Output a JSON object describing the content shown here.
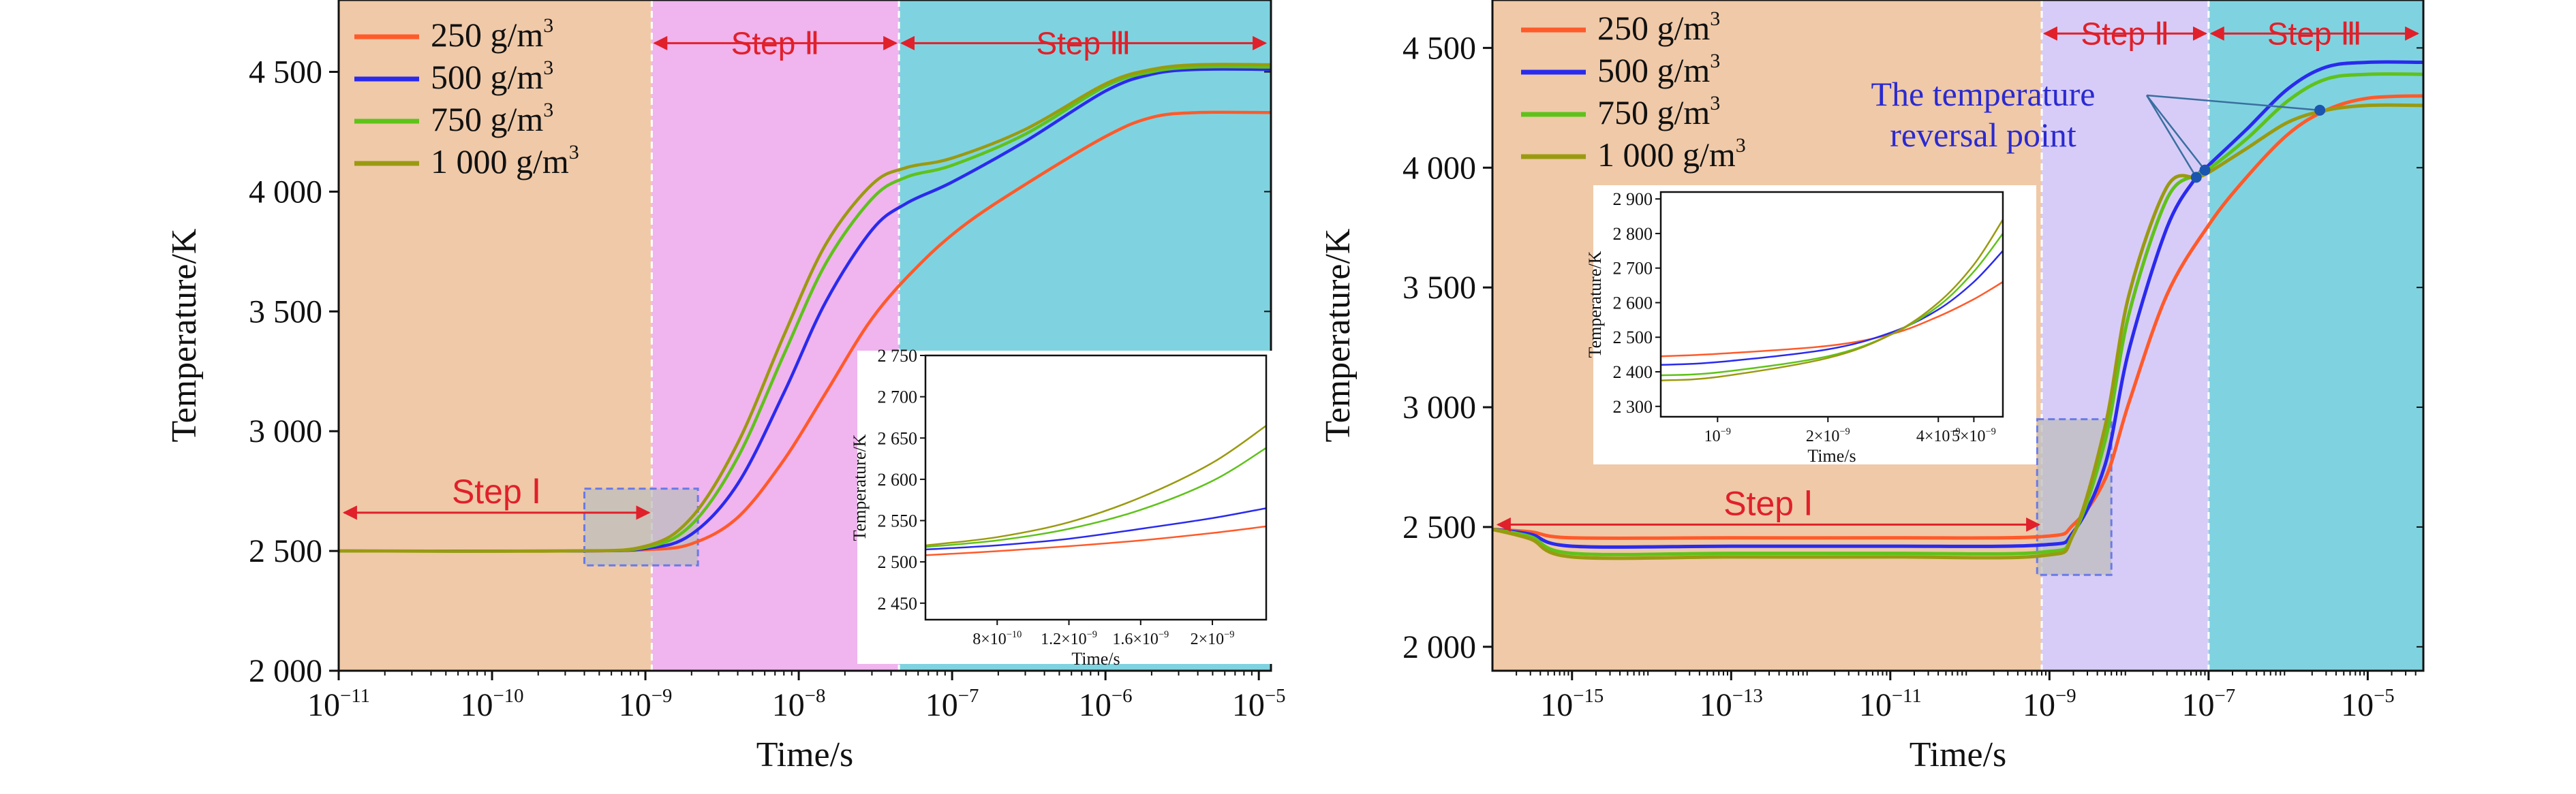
{
  "colors": {
    "s250": "#ff5a2a",
    "s500": "#2a2aee",
    "s750": "#5fc21a",
    "s1000": "#9a9a10",
    "step1_bg": "#efc9a8",
    "step2_bg_left": "#f0b4ee",
    "step2_bg_right": "#d7ccf7",
    "step3_bg": "#7fd3e0",
    "arrow": "#e0202a",
    "note": "#2a2ad0"
  },
  "chart_data": [
    {
      "type": "line",
      "xlabel": "Time/s",
      "ylabel": "Temperature/K",
      "xscale": "log",
      "xlim": [
        1e-11,
        1.2e-05
      ],
      "ylim": [
        2000,
        4800
      ],
      "xticks": [
        {
          "v": 1e-11,
          "label": "10",
          "exp": "−11"
        },
        {
          "v": 1e-10,
          "label": "10",
          "exp": "−10"
        },
        {
          "v": 1e-09,
          "label": "10",
          "exp": "−9"
        },
        {
          "v": 1e-08,
          "label": "10",
          "exp": "−8"
        },
        {
          "v": 1e-07,
          "label": "10",
          "exp": "−7"
        },
        {
          "v": 1e-06,
          "label": "10",
          "exp": "−6"
        },
        {
          "v": 1e-05,
          "label": "10",
          "exp": "−5"
        }
      ],
      "yticks": [
        {
          "v": 2000,
          "label": "2 000"
        },
        {
          "v": 2500,
          "label": "2 500"
        },
        {
          "v": 3000,
          "label": "3 000"
        },
        {
          "v": 3500,
          "label": "3 500"
        },
        {
          "v": 4000,
          "label": "4 000"
        },
        {
          "v": 4500,
          "label": "4 500"
        }
      ],
      "legend": [
        {
          "key": "s250",
          "base": "250 g/m",
          "sup": "3"
        },
        {
          "key": "s500",
          "base": "500 g/m",
          "sup": "3"
        },
        {
          "key": "s750",
          "base": "750 g/m",
          "sup": "3"
        },
        {
          "key": "s1000",
          "base": "1 000 g/m",
          "sup": "3"
        }
      ],
      "steps": [
        {
          "label": "Step Ⅰ",
          "x0": 1e-11,
          "x1": 1.1e-09,
          "y": 2660
        },
        {
          "label": "Step Ⅱ",
          "x0": 1.1e-09,
          "x1": 4.5e-08,
          "y": 4620
        },
        {
          "label": "Step Ⅲ",
          "x0": 4.5e-08,
          "x1": 1.2e-05,
          "y": 4620
        }
      ],
      "regions": [
        {
          "x0": 1e-11,
          "x1": 1.1e-09,
          "color_key": "step1_bg"
        },
        {
          "x0": 1.1e-09,
          "x1": 4.5e-08,
          "color_key": "step2_bg_left"
        },
        {
          "x0": 4.5e-08,
          "x1": 1.2e-05,
          "color_key": "step3_bg"
        }
      ],
      "zoom_box": {
        "x0": 4e-10,
        "x1": 2.2e-09,
        "y0": 2440,
        "y1": 2760
      },
      "series": [
        {
          "key": "s250",
          "x": [
            1e-11,
            3e-10,
            1e-09,
            2e-09,
            4e-09,
            8e-09,
            1.5e-08,
            3e-08,
            6e-08,
            1.2e-07,
            3e-07,
            1e-06,
            2e-06,
            4e-06,
            1.2e-05
          ],
          "y": [
            2500,
            2500,
            2505,
            2530,
            2640,
            2880,
            3160,
            3470,
            3690,
            3860,
            4030,
            4230,
            4310,
            4330,
            4330
          ]
        },
        {
          "key": "s500",
          "x": [
            1e-11,
            3e-10,
            1e-09,
            2e-09,
            4e-09,
            8e-09,
            1.5e-08,
            3e-08,
            5e-08,
            1e-07,
            3e-07,
            1e-06,
            2e-06,
            4e-06,
            1.2e-05
          ],
          "y": [
            2500,
            2500,
            2510,
            2570,
            2780,
            3160,
            3540,
            3840,
            3950,
            4040,
            4210,
            4420,
            4490,
            4510,
            4510
          ]
        },
        {
          "key": "s750",
          "x": [
            1e-11,
            3e-10,
            1e-09,
            2e-09,
            4e-09,
            8e-09,
            1.5e-08,
            3e-08,
            5e-08,
            1e-07,
            3e-07,
            1e-06,
            2e-06,
            4e-06,
            1.2e-05
          ],
          "y": [
            2500,
            2500,
            2515,
            2610,
            2890,
            3320,
            3700,
            3970,
            4060,
            4110,
            4240,
            4440,
            4500,
            4520,
            4520
          ]
        },
        {
          "key": "s1000",
          "x": [
            1e-11,
            3e-10,
            1e-09,
            2e-09,
            4e-09,
            8e-09,
            1.5e-08,
            3e-08,
            5e-08,
            1e-07,
            3e-07,
            1e-06,
            2e-06,
            4e-06,
            1.2e-05
          ],
          "y": [
            2500,
            2500,
            2520,
            2640,
            2950,
            3400,
            3780,
            4030,
            4100,
            4140,
            4260,
            4450,
            4510,
            4530,
            4530
          ]
        }
      ],
      "inset": {
        "xlabel": "Time/s",
        "ylabel": "Temperature/K",
        "xlim": [
          4e-10,
          2.3e-09
        ],
        "ylim": [
          2430,
          2750
        ],
        "xticks": [
          {
            "v": 8e-10,
            "label": "8×10",
            "exp": "−10"
          },
          {
            "v": 1.2e-09,
            "label": "1.2×10",
            "exp": "−9"
          },
          {
            "v": 1.6e-09,
            "label": "1.6×10",
            "exp": "−9"
          },
          {
            "v": 2e-09,
            "label": "2×10",
            "exp": "−9"
          }
        ],
        "yticks": [
          {
            "v": 2450,
            "label": "2 450"
          },
          {
            "v": 2500,
            "label": "2 500"
          },
          {
            "v": 2550,
            "label": "2 550"
          },
          {
            "v": 2600,
            "label": "2 600"
          },
          {
            "v": 2650,
            "label": "2 650"
          },
          {
            "v": 2700,
            "label": "2 700"
          },
          {
            "v": 2750,
            "label": "2 750"
          }
        ],
        "series": [
          {
            "key": "s250",
            "x": [
              4e-10,
              8e-10,
              1.2e-09,
              1.6e-09,
              2e-09,
              2.3e-09
            ],
            "y": [
              2508,
              2513,
              2519,
              2526,
              2535,
              2543
            ]
          },
          {
            "key": "s500",
            "x": [
              4e-10,
              8e-10,
              1.2e-09,
              1.6e-09,
              2e-09,
              2.3e-09
            ],
            "y": [
              2515,
              2520,
              2528,
              2540,
              2553,
              2565
            ]
          },
          {
            "key": "s750",
            "x": [
              4e-10,
              8e-10,
              1.2e-09,
              1.6e-09,
              2e-09,
              2.3e-09
            ],
            "y": [
              2518,
              2526,
              2540,
              2563,
              2598,
              2638
            ]
          },
          {
            "key": "s1000",
            "x": [
              4e-10,
              8e-10,
              1.2e-09,
              1.6e-09,
              2e-09,
              2.3e-09
            ],
            "y": [
              2520,
              2530,
              2548,
              2578,
              2620,
              2665
            ]
          }
        ]
      }
    },
    {
      "type": "line",
      "xlabel": "Time/s",
      "ylabel": "Temperature/K",
      "xscale": "log",
      "xlim": [
        1e-16,
        5e-05
      ],
      "ylim": [
        1900,
        4700
      ],
      "xticks": [
        {
          "v": 1e-15,
          "label": "10",
          "exp": "−15"
        },
        {
          "v": 1e-13,
          "label": "10",
          "exp": "−13"
        },
        {
          "v": 1e-11,
          "label": "10",
          "exp": "−11"
        },
        {
          "v": 1e-09,
          "label": "10",
          "exp": "−9"
        },
        {
          "v": 1e-07,
          "label": "10",
          "exp": "−7"
        },
        {
          "v": 1e-05,
          "label": "10",
          "exp": "−5"
        }
      ],
      "yticks": [
        {
          "v": 2000,
          "label": "2 000"
        },
        {
          "v": 2500,
          "label": "2 500"
        },
        {
          "v": 3000,
          "label": "3 000"
        },
        {
          "v": 3500,
          "label": "3 500"
        },
        {
          "v": 4000,
          "label": "4 000"
        },
        {
          "v": 4500,
          "label": "4 500"
        }
      ],
      "legend": [
        {
          "key": "s250",
          "base": "250 g/m",
          "sup": "3"
        },
        {
          "key": "s500",
          "base": "500 g/m",
          "sup": "3"
        },
        {
          "key": "s750",
          "base": "750 g/m",
          "sup": "3"
        },
        {
          "key": "s1000",
          "base": "1 000 g/m",
          "sup": "3"
        }
      ],
      "steps": [
        {
          "label": "Step Ⅰ",
          "x0": 1e-16,
          "x1": 8e-10,
          "y": 2510
        },
        {
          "label": "Step Ⅱ",
          "x0": 8e-10,
          "x1": 1e-07,
          "y": 4560
        },
        {
          "label": "Step Ⅲ",
          "x0": 1e-07,
          "x1": 5e-05,
          "y": 4560
        }
      ],
      "regions": [
        {
          "x0": 1e-16,
          "x1": 8e-10,
          "color_key": "step1_bg"
        },
        {
          "x0": 8e-10,
          "x1": 1e-07,
          "color_key": "step2_bg_right"
        },
        {
          "x0": 1e-07,
          "x1": 5e-05,
          "color_key": "step3_bg"
        }
      ],
      "zoom_box": {
        "x0": 7e-10,
        "x1": 6e-09,
        "y0": 2300,
        "y1": 2950
      },
      "annotation": {
        "line1": "The temperature",
        "line2": "reversal point",
        "points": [
          {
            "x": 7e-08,
            "y": 3960
          },
          {
            "x": 9e-08,
            "y": 3990
          },
          {
            "x": 2.5e-06,
            "y": 4240
          }
        ]
      },
      "series": [
        {
          "key": "s250",
          "x": [
            1e-16,
            3e-16,
            1e-15,
            1e-13,
            1e-11,
            8e-10,
            2e-09,
            5e-09,
            1e-08,
            3e-08,
            1e-07,
            3e-07,
            1e-06,
            3e-06,
            1e-05,
            5e-05
          ],
          "y": [
            2490,
            2480,
            2455,
            2455,
            2455,
            2460,
            2510,
            2700,
            3020,
            3470,
            3760,
            3960,
            4140,
            4240,
            4290,
            4300
          ]
        },
        {
          "key": "s500",
          "x": [
            1e-16,
            3e-16,
            1e-15,
            1e-13,
            1e-11,
            8e-10,
            2e-09,
            5e-09,
            1e-08,
            3e-08,
            7e-08,
            1e-07,
            3e-07,
            1e-06,
            3e-06,
            1e-05,
            5e-05
          ],
          "y": [
            2490,
            2470,
            2420,
            2420,
            2420,
            2425,
            2480,
            2760,
            3240,
            3750,
            3960,
            4010,
            4160,
            4330,
            4420,
            4440,
            4440
          ]
        },
        {
          "key": "s750",
          "x": [
            1e-16,
            3e-16,
            1e-15,
            1e-13,
            1e-11,
            8e-10,
            2e-09,
            5e-09,
            1e-08,
            3e-08,
            7e-08,
            1e-07,
            3e-07,
            1e-06,
            3e-06,
            1e-05,
            5e-05
          ],
          "y": [
            2490,
            2460,
            2390,
            2390,
            2390,
            2395,
            2470,
            2860,
            3390,
            3870,
            3970,
            3995,
            4120,
            4280,
            4370,
            4390,
            4390
          ]
        },
        {
          "key": "s1000",
          "x": [
            1e-16,
            3e-16,
            1e-15,
            1e-13,
            1e-11,
            8e-10,
            2e-09,
            5e-09,
            1e-08,
            3e-08,
            7e-08,
            1e-07,
            3e-07,
            1e-06,
            3e-06,
            1e-05,
            5e-05
          ],
          "y": [
            2490,
            2450,
            2375,
            2375,
            2375,
            2380,
            2470,
            2920,
            3470,
            3920,
            3960,
            3980,
            4080,
            4190,
            4240,
            4260,
            4260
          ]
        }
      ],
      "inset": {
        "xlabel": "Time/s",
        "ylabel": "Temperature/K",
        "xlim": [
          7e-10,
          6e-09
        ],
        "ylim": [
          2270,
          2920
        ],
        "xticks": [
          {
            "v": 1e-09,
            "label": "10",
            "exp": "−9"
          },
          {
            "v": 2e-09,
            "label": "2×10",
            "exp": "−9"
          },
          {
            "v": 4e-09,
            "label": "4×10",
            "exp": "−9"
          },
          {
            "v": 5e-09,
            "label": "5×10",
            "exp": "−9"
          }
        ],
        "yticks": [
          {
            "v": 2300,
            "label": "2 300"
          },
          {
            "v": 2400,
            "label": "2 400"
          },
          {
            "v": 2500,
            "label": "2 500"
          },
          {
            "v": 2600,
            "label": "2 600"
          },
          {
            "v": 2700,
            "label": "2 700"
          },
          {
            "v": 2800,
            "label": "2 800"
          },
          {
            "v": 2900,
            "label": "2 900"
          }
        ],
        "series": [
          {
            "key": "s250",
            "x": [
              7e-10,
              1e-09,
              2e-09,
              3e-09,
              4e-09,
              5e-09,
              6e-09
            ],
            "y": [
              2445,
              2452,
              2475,
              2510,
              2560,
              2610,
              2660
            ]
          },
          {
            "key": "s500",
            "x": [
              7e-10,
              1e-09,
              2e-09,
              3e-09,
              4e-09,
              5e-09,
              6e-09
            ],
            "y": [
              2420,
              2428,
              2465,
              2515,
              2580,
              2660,
              2750
            ]
          },
          {
            "key": "s750",
            "x": [
              7e-10,
              1e-09,
              2e-09,
              3e-09,
              4e-09,
              5e-09,
              6e-09
            ],
            "y": [
              2390,
              2398,
              2445,
              2510,
              2590,
              2690,
              2800
            ]
          },
          {
            "key": "s1000",
            "x": [
              7e-10,
              1e-09,
              2e-09,
              3e-09,
              4e-09,
              5e-09,
              6e-09
            ],
            "y": [
              2375,
              2385,
              2440,
              2510,
              2600,
              2710,
              2840
            ]
          }
        ]
      }
    }
  ]
}
